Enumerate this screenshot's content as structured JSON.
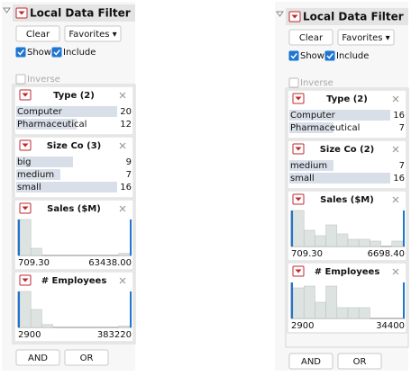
{
  "panels": [
    {
      "title": "Local Data Filter",
      "buttons": [
        "Clear",
        "Favorites ▾"
      ],
      "checks": [
        "Show",
        "Include"
      ],
      "inverse": "Inverse",
      "filters": [
        {
          "kind": "categorical",
          "name": "Type (2)",
          "items": [
            {
              "label": "Computer",
              "count": 20
            },
            {
              "label": "Pharmaceutical",
              "count": 12
            }
          ]
        },
        {
          "kind": "categorical",
          "name": "Size Co (3)",
          "items": [
            {
              "label": "big",
              "count": 9
            },
            {
              "label": "medium",
              "count": 7
            },
            {
              "label": "small",
              "count": 16
            }
          ]
        },
        {
          "kind": "range",
          "name": "Sales ($M)",
          "min": "709.30",
          "max": "63438.00",
          "histogram": [
            1,
            0.2,
            0,
            0,
            0,
            0,
            0,
            0,
            0,
            0.06
          ]
        },
        {
          "kind": "range",
          "name": "# Employees",
          "min": "2900",
          "max": "383220",
          "histogram": [
            1,
            0.5,
            0.08,
            0,
            0,
            0,
            0,
            0,
            0,
            0.04
          ]
        }
      ],
      "footer": [
        "AND",
        "OR"
      ]
    },
    {
      "title": "Local Data Filter",
      "buttons": [
        "Clear",
        "Favorites ▾"
      ],
      "checks": [
        "Show",
        "Include"
      ],
      "inverse": "Inverse",
      "filters": [
        {
          "kind": "categorical",
          "name": "Type (2)",
          "items": [
            {
              "label": "Computer",
              "count": 16
            },
            {
              "label": "Pharmaceutical",
              "count": 7
            }
          ]
        },
        {
          "kind": "categorical",
          "name": "Size Co (2)",
          "items": [
            {
              "label": "medium",
              "count": 7
            },
            {
              "label": "small",
              "count": 16
            }
          ]
        },
        {
          "kind": "range",
          "name": "Sales ($M)",
          "min": "709.30",
          "max": "6698.40",
          "histogram": [
            1,
            0.45,
            0.3,
            0.6,
            0.35,
            0.2,
            0.2,
            0.15,
            0,
            0.15
          ]
        },
        {
          "kind": "range",
          "name": "# Employees",
          "min": "2900",
          "max": "34400",
          "histogram": [
            0.85,
            0.9,
            0.45,
            0.9,
            0.3,
            0.3,
            0.3,
            0,
            0,
            0
          ]
        }
      ],
      "footer": [
        "AND",
        "OR"
      ]
    }
  ]
}
